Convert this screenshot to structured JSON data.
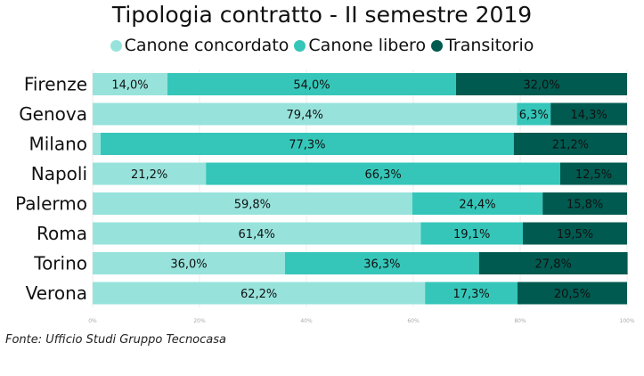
{
  "chart_data": {
    "type": "bar",
    "orientation": "horizontal",
    "stacked": "percent",
    "title": "Tipologia contratto - II semestre 2019",
    "categories": [
      "Firenze",
      "Genova",
      "Milano",
      "Napoli",
      "Palermo",
      "Roma",
      "Torino",
      "Verona"
    ],
    "series": [
      {
        "name": "Canone concordato",
        "color": "#97e3dc",
        "values": [
          14.0,
          79.4,
          1.5,
          21.2,
          59.8,
          61.4,
          36.0,
          62.2
        ],
        "labels": [
          "14,0%",
          "79,4%",
          "",
          "21,2%",
          "59,8%",
          "61,4%",
          "36,0%",
          "62,2%"
        ]
      },
      {
        "name": "Canone libero",
        "color": "#35c6b9",
        "values": [
          54.0,
          6.3,
          77.3,
          66.3,
          24.4,
          19.1,
          36.3,
          17.3
        ],
        "labels": [
          "54,0%",
          "6,3%",
          "77,3%",
          "66,3%",
          "24,4%",
          "19,1%",
          "36,3%",
          "17,3%"
        ]
      },
      {
        "name": "Transitorio",
        "color": "#005a50",
        "values": [
          32.0,
          14.3,
          21.2,
          12.5,
          15.8,
          19.5,
          27.8,
          20.5
        ],
        "labels": [
          "32,0%",
          "14,3%",
          "21,2%",
          "12,5%",
          "15,8%",
          "19,5%",
          "27,8%",
          "20,5%"
        ]
      }
    ],
    "xticks": [
      "0%",
      "20%",
      "40%",
      "60%",
      "80%",
      "100%"
    ],
    "xlim": [
      0,
      100
    ],
    "legend": "top",
    "grid": true
  },
  "source": "Fonte: Ufficio Studi Gruppo Tecnocasa"
}
